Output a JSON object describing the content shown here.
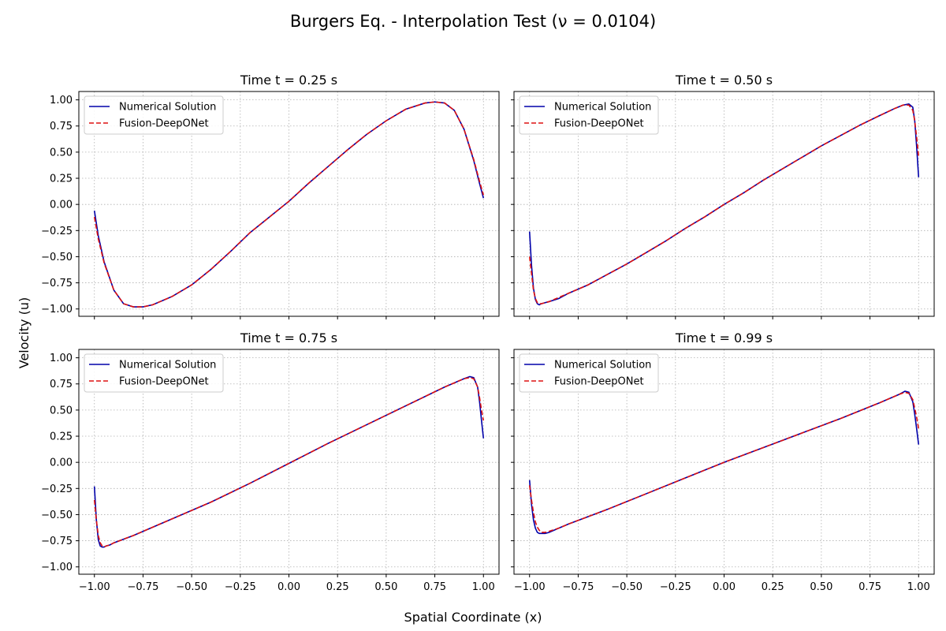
{
  "figure": {
    "suptitle": "Burgers Eq. - Interpolation Test (ν = 0.0104)",
    "supxlabel": "Spatial Coordinate (x)",
    "supylabel": "Velocity (u)",
    "colors": {
      "numerical": "#0000aa",
      "deeponet": "#dd1111",
      "grid": "#b0b0b0"
    }
  },
  "chart_data": [
    {
      "type": "line",
      "title": "Time t = 0.25 s",
      "xlim": [
        -1.08,
        1.08
      ],
      "ylim": [
        -1.07,
        1.08
      ],
      "xticks": [
        -1.0,
        -0.75,
        -0.5,
        -0.25,
        0.0,
        0.25,
        0.5,
        0.75,
        1.0
      ],
      "xtick_labels": [
        "−1.00",
        "−0.75",
        "−0.50",
        "−0.25",
        "0.00",
        "0.25",
        "0.50",
        "0.75",
        "1.00"
      ],
      "yticks": [
        1.0,
        0.75,
        0.5,
        0.25,
        0.0,
        -0.25,
        -0.5,
        -0.75,
        -1.0
      ],
      "ytick_labels": [
        "1.00",
        "0.75",
        "0.50",
        "0.25",
        "0.00",
        "−0.25",
        "−0.50",
        "−0.75",
        "−1.00"
      ],
      "grid": true,
      "legend_position": "top-left",
      "series": [
        {
          "name": "Numerical Solution",
          "style": "solid",
          "x": [
            -1.0,
            -0.98,
            -0.95,
            -0.9,
            -0.85,
            -0.8,
            -0.75,
            -0.7,
            -0.6,
            -0.5,
            -0.4,
            -0.3,
            -0.2,
            -0.1,
            0.0,
            0.1,
            0.2,
            0.3,
            0.4,
            0.5,
            0.6,
            0.7,
            0.75,
            0.8,
            0.85,
            0.9,
            0.95,
            0.98,
            1.0
          ],
          "y": [
            -0.06,
            -0.3,
            -0.55,
            -0.82,
            -0.95,
            -0.98,
            -0.98,
            -0.96,
            -0.88,
            -0.77,
            -0.62,
            -0.45,
            -0.27,
            -0.12,
            0.03,
            0.2,
            0.36,
            0.52,
            0.67,
            0.8,
            0.91,
            0.97,
            0.98,
            0.97,
            0.9,
            0.72,
            0.42,
            0.2,
            0.06
          ]
        },
        {
          "name": "Fusion-DeepONet",
          "style": "dashed",
          "x": [
            -1.0,
            -0.98,
            -0.95,
            -0.9,
            -0.85,
            -0.8,
            -0.75,
            -0.7,
            -0.6,
            -0.5,
            -0.4,
            -0.3,
            -0.2,
            -0.1,
            0.0,
            0.1,
            0.2,
            0.3,
            0.4,
            0.5,
            0.6,
            0.7,
            0.75,
            0.8,
            0.85,
            0.9,
            0.95,
            0.98,
            1.0
          ],
          "y": [
            -0.12,
            -0.33,
            -0.56,
            -0.82,
            -0.95,
            -0.98,
            -0.98,
            -0.96,
            -0.88,
            -0.77,
            -0.62,
            -0.45,
            -0.27,
            -0.12,
            0.03,
            0.2,
            0.36,
            0.52,
            0.67,
            0.8,
            0.91,
            0.97,
            0.98,
            0.97,
            0.9,
            0.72,
            0.43,
            0.22,
            0.09
          ]
        }
      ]
    },
    {
      "type": "line",
      "title": "Time t = 0.50 s",
      "xlim": [
        -1.08,
        1.08
      ],
      "ylim": [
        -1.07,
        1.08
      ],
      "xticks": [
        -1.0,
        -0.75,
        -0.5,
        -0.25,
        0.0,
        0.25,
        0.5,
        0.75,
        1.0
      ],
      "xtick_labels": [
        "−1.00",
        "−0.75",
        "−0.50",
        "−0.25",
        "0.00",
        "0.25",
        "0.50",
        "0.75",
        "1.00"
      ],
      "yticks": [
        1.0,
        0.75,
        0.5,
        0.25,
        0.0,
        -0.25,
        -0.5,
        -0.75,
        -1.0
      ],
      "ytick_labels": [],
      "grid": true,
      "legend_position": "top-left",
      "series": [
        {
          "name": "Numerical Solution",
          "style": "solid",
          "x": [
            -1.0,
            -0.99,
            -0.98,
            -0.97,
            -0.96,
            -0.95,
            -0.94,
            -0.92,
            -0.9,
            -0.85,
            -0.8,
            -0.7,
            -0.6,
            -0.5,
            -0.4,
            -0.3,
            -0.2,
            -0.1,
            0.0,
            0.1,
            0.2,
            0.3,
            0.4,
            0.5,
            0.6,
            0.7,
            0.8,
            0.88,
            0.92,
            0.95,
            0.97,
            0.98,
            0.99,
            1.0
          ],
          "y": [
            -0.26,
            -0.58,
            -0.8,
            -0.91,
            -0.95,
            -0.96,
            -0.95,
            -0.94,
            -0.93,
            -0.9,
            -0.85,
            -0.77,
            -0.67,
            -0.57,
            -0.46,
            -0.35,
            -0.23,
            -0.12,
            0.0,
            0.11,
            0.23,
            0.34,
            0.45,
            0.56,
            0.66,
            0.76,
            0.85,
            0.92,
            0.95,
            0.96,
            0.93,
            0.8,
            0.55,
            0.26
          ]
        },
        {
          "name": "Fusion-DeepONet",
          "style": "dashed",
          "x": [
            -1.0,
            -0.99,
            -0.98,
            -0.97,
            -0.96,
            -0.95,
            -0.94,
            -0.92,
            -0.9,
            -0.85,
            -0.8,
            -0.7,
            -0.6,
            -0.5,
            -0.4,
            -0.3,
            -0.2,
            -0.1,
            0.0,
            0.1,
            0.2,
            0.3,
            0.4,
            0.5,
            0.6,
            0.7,
            0.8,
            0.88,
            0.92,
            0.95,
            0.97,
            0.98,
            0.99,
            1.0
          ],
          "y": [
            -0.5,
            -0.66,
            -0.82,
            -0.9,
            -0.94,
            -0.95,
            -0.95,
            -0.94,
            -0.93,
            -0.89,
            -0.85,
            -0.77,
            -0.67,
            -0.57,
            -0.46,
            -0.35,
            -0.23,
            -0.12,
            0.0,
            0.11,
            0.23,
            0.34,
            0.45,
            0.56,
            0.66,
            0.76,
            0.85,
            0.92,
            0.95,
            0.95,
            0.9,
            0.8,
            0.64,
            0.46
          ]
        }
      ]
    },
    {
      "type": "line",
      "title": "Time t = 0.75 s",
      "xlim": [
        -1.08,
        1.08
      ],
      "ylim": [
        -1.07,
        1.08
      ],
      "xticks": [
        -1.0,
        -0.75,
        -0.5,
        -0.25,
        0.0,
        0.25,
        0.5,
        0.75,
        1.0
      ],
      "xtick_labels": [
        "−1.00",
        "−0.75",
        "−0.50",
        "−0.25",
        "0.00",
        "0.25",
        "0.50",
        "0.75",
        "1.00"
      ],
      "yticks": [
        1.0,
        0.75,
        0.5,
        0.25,
        0.0,
        -0.25,
        -0.5,
        -0.75,
        -1.0
      ],
      "ytick_labels": [
        "1.00",
        "0.75",
        "0.50",
        "0.25",
        "0.00",
        "−0.25",
        "−0.50",
        "−0.75",
        "−1.00"
      ],
      "grid": true,
      "legend_position": "top-left",
      "series": [
        {
          "name": "Numerical Solution",
          "style": "solid",
          "x": [
            -1.0,
            -0.99,
            -0.98,
            -0.97,
            -0.96,
            -0.95,
            -0.94,
            -0.92,
            -0.9,
            -0.8,
            -0.6,
            -0.4,
            -0.2,
            0.0,
            0.2,
            0.4,
            0.6,
            0.8,
            0.9,
            0.93,
            0.95,
            0.97,
            0.98,
            0.99,
            1.0
          ],
          "y": [
            -0.23,
            -0.55,
            -0.74,
            -0.8,
            -0.81,
            -0.81,
            -0.8,
            -0.79,
            -0.77,
            -0.7,
            -0.54,
            -0.38,
            -0.2,
            -0.01,
            0.18,
            0.36,
            0.54,
            0.72,
            0.8,
            0.82,
            0.81,
            0.72,
            0.58,
            0.4,
            0.23
          ]
        },
        {
          "name": "Fusion-DeepONet",
          "style": "dashed",
          "x": [
            -1.0,
            -0.99,
            -0.98,
            -0.97,
            -0.96,
            -0.95,
            -0.94,
            -0.92,
            -0.9,
            -0.8,
            -0.6,
            -0.4,
            -0.2,
            0.0,
            0.2,
            0.4,
            0.6,
            0.8,
            0.9,
            0.93,
            0.95,
            0.97,
            0.98,
            0.99,
            1.0
          ],
          "y": [
            -0.36,
            -0.55,
            -0.7,
            -0.77,
            -0.8,
            -0.81,
            -0.8,
            -0.79,
            -0.77,
            -0.7,
            -0.54,
            -0.38,
            -0.2,
            -0.01,
            0.18,
            0.36,
            0.54,
            0.72,
            0.8,
            0.81,
            0.8,
            0.72,
            0.62,
            0.5,
            0.4
          ]
        }
      ]
    },
    {
      "type": "line",
      "title": "Time t = 0.99 s",
      "xlim": [
        -1.08,
        1.08
      ],
      "ylim": [
        -1.07,
        1.08
      ],
      "xticks": [
        -1.0,
        -0.75,
        -0.5,
        -0.25,
        0.0,
        0.25,
        0.5,
        0.75,
        1.0
      ],
      "xtick_labels": [
        "−1.00",
        "−0.75",
        "−0.50",
        "−0.25",
        "0.00",
        "0.25",
        "0.50",
        "0.75",
        "1.00"
      ],
      "yticks": [
        1.0,
        0.75,
        0.5,
        0.25,
        0.0,
        -0.25,
        -0.5,
        -0.75,
        -1.0
      ],
      "ytick_labels": [],
      "grid": true,
      "legend_position": "top-left",
      "series": [
        {
          "name": "Numerical Solution",
          "style": "solid",
          "x": [
            -1.0,
            -0.99,
            -0.98,
            -0.97,
            -0.96,
            -0.95,
            -0.94,
            -0.92,
            -0.9,
            -0.85,
            -0.8,
            -0.6,
            -0.4,
            -0.2,
            0.0,
            0.2,
            0.4,
            0.6,
            0.8,
            0.9,
            0.93,
            0.95,
            0.97,
            0.98,
            0.99,
            1.0
          ],
          "y": [
            -0.17,
            -0.4,
            -0.55,
            -0.63,
            -0.67,
            -0.68,
            -0.68,
            -0.68,
            -0.67,
            -0.63,
            -0.59,
            -0.45,
            -0.3,
            -0.15,
            0.0,
            0.14,
            0.28,
            0.42,
            0.57,
            0.65,
            0.68,
            0.67,
            0.58,
            0.46,
            0.32,
            0.17
          ]
        },
        {
          "name": "Fusion-DeepONet",
          "style": "dashed",
          "x": [
            -1.0,
            -0.99,
            -0.98,
            -0.97,
            -0.96,
            -0.95,
            -0.94,
            -0.92,
            -0.9,
            -0.85,
            -0.8,
            -0.6,
            -0.4,
            -0.2,
            0.0,
            0.2,
            0.4,
            0.6,
            0.8,
            0.9,
            0.93,
            0.95,
            0.97,
            0.98,
            0.99,
            1.0
          ],
          "y": [
            -0.22,
            -0.36,
            -0.48,
            -0.57,
            -0.62,
            -0.65,
            -0.67,
            -0.67,
            -0.66,
            -0.63,
            -0.59,
            -0.45,
            -0.3,
            -0.15,
            0.0,
            0.14,
            0.28,
            0.42,
            0.57,
            0.65,
            0.67,
            0.66,
            0.6,
            0.52,
            0.43,
            0.32
          ]
        }
      ]
    }
  ]
}
